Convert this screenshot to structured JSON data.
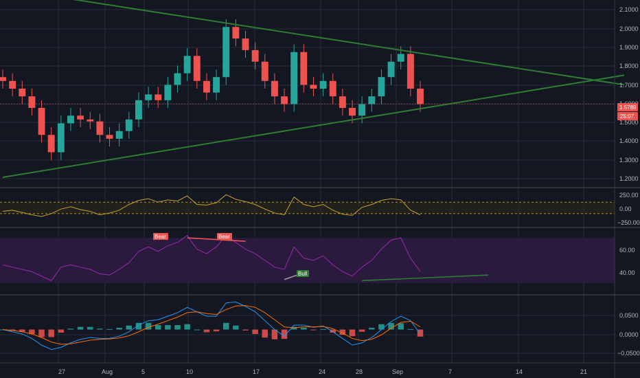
{
  "colors": {
    "background": "#131722",
    "grid": "#2a2e39",
    "up": "#26a69a",
    "down": "#ef5350",
    "trendline": "#2e7d32",
    "cci": "#c9a227",
    "rsi": "#9c27b0",
    "rsi_band": "#2a1a3d",
    "macd": "#2196f3",
    "signal": "#ff6d00",
    "price_tag": "#ef5350"
  },
  "price_axis": {
    "ticks": [
      "2.1000",
      "2.0000",
      "1.9000",
      "1.8000",
      "1.7000",
      "1.6000",
      "1.5000",
      "1.4000",
      "1.3000",
      "1.2000"
    ],
    "last_price": "1.5789",
    "countdown": "25:07"
  },
  "cci_axis": {
    "ticks": [
      "250.00",
      "0.00",
      "−250.00"
    ]
  },
  "rsi_axis": {
    "ticks": [
      "60.00",
      "40.00"
    ]
  },
  "macd_axis": {
    "ticks": [
      "0.0500",
      "0.0000",
      "−0.0500"
    ]
  },
  "date_axis": {
    "ticks": [
      "27",
      "Aug",
      "5",
      "10",
      "17",
      "24",
      "28",
      "Sep",
      "7",
      "14",
      "21"
    ]
  },
  "annotations": {
    "bear1": "Bear",
    "bear2": "Bear",
    "bull": "Bull"
  },
  "chart_data": [
    {
      "type": "candlestick",
      "ylim": [
        1.15,
        2.12
      ],
      "x": [
        "Jul 22",
        "Jul 23",
        "Jul 24",
        "Jul 25",
        "Jul 26",
        "Jul 27",
        "Jul 28",
        "Jul 29",
        "Jul 30",
        "Jul 31",
        "Aug 1",
        "Aug 2",
        "Aug 3",
        "Aug 4",
        "Aug 5",
        "Aug 6",
        "Aug 7",
        "Aug 8",
        "Aug 9",
        "Aug 10",
        "Aug 11",
        "Aug 12",
        "Aug 13",
        "Aug 14",
        "Aug 15",
        "Aug 16",
        "Aug 17",
        "Aug 18",
        "Aug 19",
        "Aug 20",
        "Aug 21",
        "Aug 22",
        "Aug 23",
        "Aug 24",
        "Aug 25",
        "Aug 26",
        "Aug 27",
        "Aug 28",
        "Aug 29",
        "Aug 30",
        "Aug 31",
        "Sep 1",
        "Sep 2",
        "Sep 3"
      ],
      "close": [
        1.7,
        1.66,
        1.62,
        1.56,
        1.42,
        1.33,
        1.48,
        1.52,
        1.5,
        1.49,
        1.42,
        1.4,
        1.44,
        1.5,
        1.6,
        1.63,
        1.6,
        1.68,
        1.74,
        1.83,
        1.7,
        1.64,
        1.72,
        1.98,
        1.92,
        1.86,
        1.8,
        1.7,
        1.62,
        1.58,
        1.85,
        1.68,
        1.66,
        1.7,
        1.62,
        1.56,
        1.52,
        1.58,
        1.62,
        1.72,
        1.8,
        1.84,
        1.66,
        1.58
      ],
      "trendlines": [
        {
          "name": "upper",
          "points": [
            [
              "Jul 22",
              2.18
            ],
            [
              "Sep 24",
              1.68
            ]
          ]
        },
        {
          "name": "lower",
          "points": [
            [
              "Jul 22",
              1.2
            ],
            [
              "Sep 24",
              1.73
            ]
          ]
        }
      ],
      "last_price": 1.5789
    },
    {
      "type": "line",
      "name": "CCI",
      "ylim": [
        -330,
        330
      ],
      "bands": [
        100,
        -100
      ],
      "values": [
        -60,
        -40,
        -80,
        -120,
        -150,
        -100,
        -20,
        20,
        -30,
        -60,
        -120,
        -90,
        -40,
        60,
        130,
        160,
        100,
        140,
        120,
        210,
        60,
        50,
        90,
        230,
        150,
        110,
        60,
        -20,
        -90,
        -120,
        190,
        60,
        20,
        60,
        -40,
        -110,
        -130,
        10,
        60,
        130,
        160,
        140,
        -40,
        -120
      ]
    },
    {
      "type": "line",
      "name": "RSI",
      "ylim": [
        20,
        78
      ],
      "band": [
        30,
        70
      ],
      "values": [
        46,
        44,
        42,
        40,
        36,
        32,
        44,
        46,
        44,
        42,
        38,
        37,
        42,
        48,
        58,
        62,
        58,
        63,
        66,
        72,
        60,
        56,
        62,
        72,
        66,
        60,
        56,
        50,
        44,
        42,
        62,
        52,
        50,
        54,
        46,
        40,
        36,
        44,
        50,
        60,
        68,
        70,
        52,
        40
      ],
      "trendlines": [
        {
          "label": "Bear",
          "points": [
            [
              "Aug 12",
              70
            ],
            [
              "Aug 16",
              66
            ]
          ]
        },
        {
          "label": "Bull",
          "points": [
            [
              "Aug 19",
              33
            ],
            [
              "Aug 20",
              38
            ]
          ]
        },
        {
          "points": [
            [
              "Aug 28",
              34
            ],
            [
              "Sep 10",
              37
            ]
          ]
        }
      ]
    },
    {
      "type": "bar",
      "name": "MACD",
      "ylim": [
        -0.075,
        0.075
      ],
      "series": [
        {
          "name": "MACD",
          "values": [
            0.0,
            -0.005,
            -0.01,
            -0.02,
            -0.035,
            -0.045,
            -0.04,
            -0.03,
            -0.022,
            -0.018,
            -0.02,
            -0.02,
            -0.015,
            -0.005,
            0.01,
            0.02,
            0.022,
            0.03,
            0.038,
            0.05,
            0.04,
            0.03,
            0.03,
            0.06,
            0.062,
            0.052,
            0.04,
            0.02,
            0.0,
            -0.015,
            0.01,
            0.01,
            0.005,
            0.008,
            -0.005,
            -0.02,
            -0.035,
            -0.03,
            -0.018,
            0.0,
            0.018,
            0.03,
            0.02,
            -0.01
          ]
        },
        {
          "name": "Signal",
          "values": [
            0.0,
            -0.002,
            -0.005,
            -0.01,
            -0.018,
            -0.028,
            -0.033,
            -0.032,
            -0.028,
            -0.024,
            -0.022,
            -0.021,
            -0.019,
            -0.014,
            -0.005,
            0.005,
            0.012,
            0.02,
            0.028,
            0.038,
            0.04,
            0.036,
            0.034,
            0.045,
            0.053,
            0.054,
            0.05,
            0.038,
            0.022,
            0.006,
            0.004,
            0.006,
            0.006,
            0.007,
            0.002,
            -0.008,
            -0.02,
            -0.025,
            -0.022,
            -0.012,
            0.003,
            0.016,
            0.019,
            0.006
          ]
        }
      ]
    }
  ]
}
